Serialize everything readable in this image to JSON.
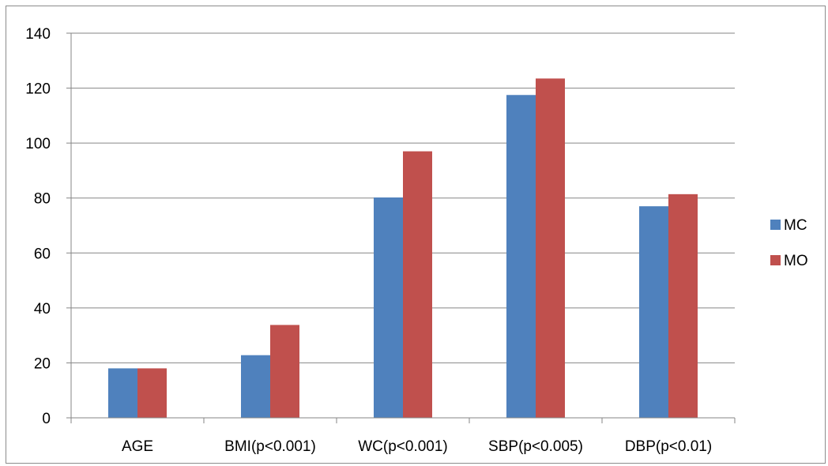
{
  "chart_data": {
    "type": "bar",
    "categories": [
      "AGE",
      "BMI(p<0.001)",
      "WC(p<0.001)",
      "SBP(p<0.005)",
      "DBP(p<0.01)"
    ],
    "series": [
      {
        "name": "MC",
        "values": [
          18,
          22.8,
          80.2,
          117.5,
          77
        ],
        "color": "#4f81bd"
      },
      {
        "name": "MO",
        "values": [
          18,
          33.8,
          97,
          123.5,
          81.4
        ],
        "color": "#c0504d"
      }
    ],
    "yticks": [
      0,
      20,
      40,
      60,
      80,
      100,
      120,
      140
    ],
    "ylim": [
      0,
      140
    ],
    "grid": true,
    "legend_position": "right",
    "title": "",
    "xlabel": "",
    "ylabel": ""
  }
}
